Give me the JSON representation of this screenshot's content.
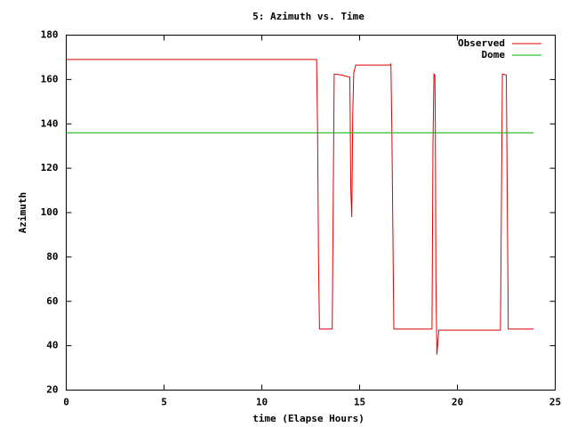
{
  "chart_data": {
    "type": "line",
    "title": "5: Azimuth vs. Time",
    "xlabel": "time (Elapse Hours)",
    "ylabel": "Azimuth",
    "xlim": [
      0,
      25
    ],
    "xticks": [
      0,
      5,
      10,
      15,
      20,
      25
    ],
    "ylim": [
      20,
      180
    ],
    "yticks": [
      20,
      40,
      60,
      80,
      100,
      120,
      140,
      160,
      180
    ],
    "legend": "top right",
    "grid": false,
    "series": [
      {
        "name": "Observed",
        "color": "#e00000",
        "x": [
          0,
          12.8,
          12.85,
          12.9,
          12.95,
          13.6,
          13.7,
          14.1,
          14.5,
          14.55,
          14.6,
          14.65,
          14.7,
          14.8,
          16.55,
          16.6,
          16.65,
          16.75,
          18.7,
          18.75,
          18.8,
          18.85,
          18.87,
          18.9,
          18.95,
          19.05,
          22.2,
          22.3,
          22.5,
          22.6,
          23.9
        ],
        "values": [
          169,
          169,
          138,
          78,
          47.5,
          47.5,
          162.5,
          162,
          161,
          110,
          98,
          145,
          163,
          166.5,
          166.5,
          167,
          136,
          47.5,
          47.5,
          130,
          162.5,
          162,
          140,
          70,
          36,
          47,
          47,
          162.5,
          162,
          47.5,
          47.5
        ]
      },
      {
        "name": "Dome",
        "color": "#00b000",
        "x": [
          0,
          23.9
        ],
        "values": [
          136,
          136
        ]
      }
    ]
  }
}
